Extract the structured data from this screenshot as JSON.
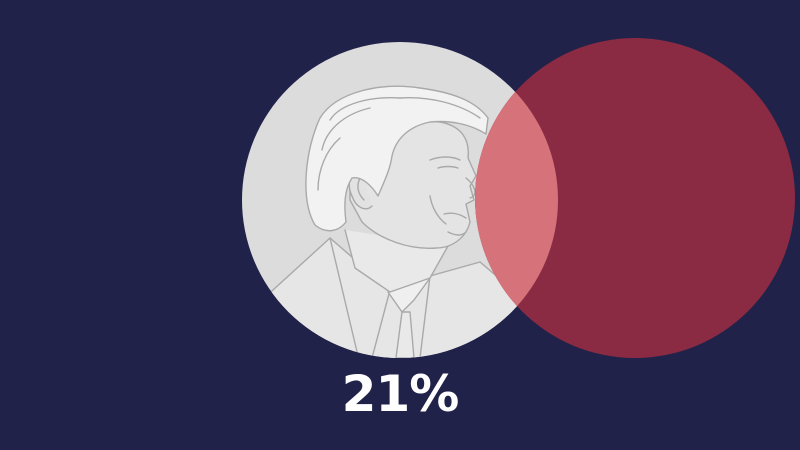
{
  "diagram": {
    "type": "venn",
    "share_label": "21%",
    "share_value": 21,
    "left_circle": {
      "content": "portrait-illustration",
      "color": "#dcdcdc"
    },
    "right_circle": {
      "color": "#8a2b43"
    },
    "overlap_color": "#d6727a"
  },
  "colors": {
    "background": "#20224a",
    "text": "#ffffff",
    "line_art": "#a9a9a9"
  }
}
